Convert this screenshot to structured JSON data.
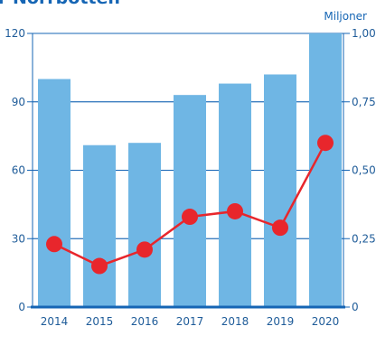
{
  "chart_data": {
    "type": "bar+line",
    "title": "r Norrbotten",
    "categories": [
      "2014",
      "2015",
      "2016",
      "2017",
      "2018",
      "2019",
      "2020"
    ],
    "series": [
      {
        "type": "bar",
        "axis": "left",
        "values": [
          100,
          71,
          72,
          93,
          98,
          102,
          120
        ]
      },
      {
        "type": "line",
        "axis": "right",
        "values": [
          0.23,
          0.15,
          0.21,
          0.33,
          0.35,
          0.29,
          0.6
        ]
      }
    ],
    "y_left": {
      "ylim": [
        0,
        120
      ],
      "ticks": [
        "0",
        "30",
        "60",
        "90",
        "120"
      ],
      "tick_values": [
        0,
        30,
        60,
        90,
        120
      ]
    },
    "y_right": {
      "unit": "Miljoner",
      "ylim": [
        0,
        1
      ],
      "ticks": [
        "0",
        "0,25",
        "0,50",
        "0,75",
        "1,00"
      ],
      "tick_values": [
        0,
        0.25,
        0.5,
        0.75,
        1
      ]
    },
    "grid": true,
    "colors": {
      "bar": "#6fb6e4",
      "line": "#e8262c",
      "axis": "#1565b4",
      "grid": "#1565b4",
      "text": "#1f5c99"
    }
  }
}
